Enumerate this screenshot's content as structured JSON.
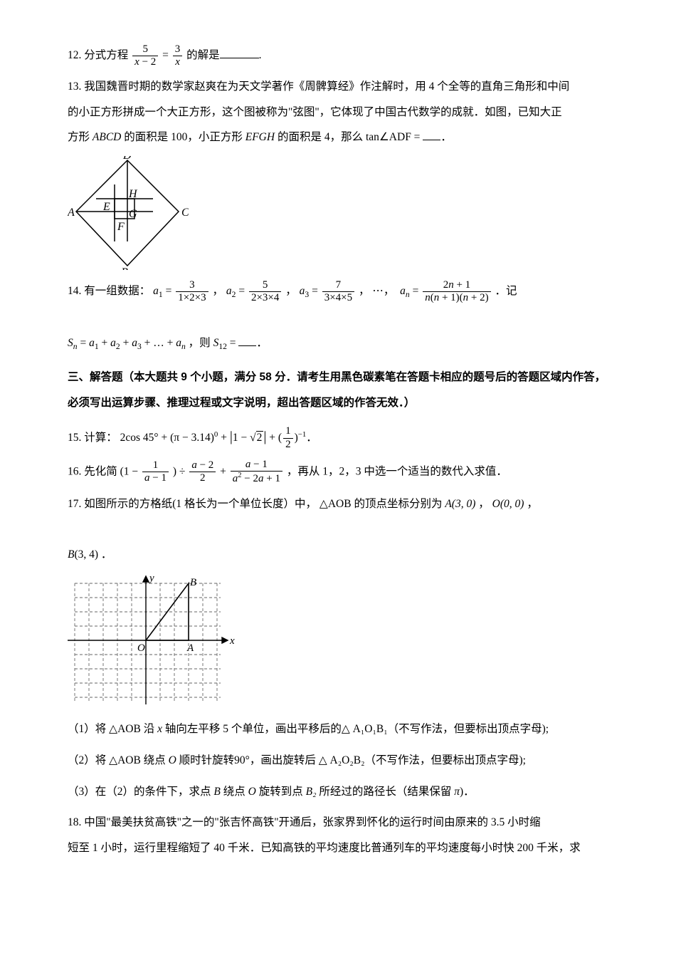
{
  "q12": {
    "num": "12.",
    "pre": "分式方程",
    "frac1_n": "5",
    "frac1_d_a": "x",
    "frac1_d_op": " − 2",
    "eq": " = ",
    "frac2_n": "3",
    "frac2_d": "x",
    "post": "的解是",
    "end": "."
  },
  "q13": {
    "num": "13.",
    "line1a": "我国魏晋时期的数学家赵爽在为天文学著作《周髀算经》作注解时，用 4 个全等的直角三角形和中间",
    "line2": "的小正方形拼成一个大正方形，这个图被称为\"弦图\"，它体现了中国古代数学的成就．如图，已知大正",
    "line3a": "方形",
    "sq1": " ABCD ",
    "line3b": "的面积是 100，小正方形",
    "sq2": " EFGH ",
    "line3c": "的面积是 4，那么",
    "tan": " tan∠ADF = ",
    "end": "．",
    "diagram": {
      "labels": {
        "A": "A",
        "B": "B",
        "C": "C",
        "D": "D",
        "E": "E",
        "F": "F",
        "G": "G",
        "H": "H"
      },
      "stroke": "#000000",
      "stroke_width": 1.5
    }
  },
  "q14": {
    "num": "14.",
    "pre": "有一组数据：",
    "a1": "a",
    "sub1": "1",
    "eq": " = ",
    "f1n": "3",
    "f1d": "1×2×3",
    "a2": "a",
    "sub2": "2",
    "f2n": "5",
    "f2d": "2×3×4",
    "a3": "a",
    "sub3": "3",
    "f3n": "7",
    "f3d": "3×4×5",
    "dots": "⋯",
    "an": "a",
    "subn": "n",
    "fnn_a": "2",
    "fnn_b": "n",
    "fnn_c": " + 1",
    "fnd_a": "n",
    "fnd_b": "(",
    "fnd_c": "n",
    "fnd_d": " + 1)(",
    "fnd_e": "n",
    "fnd_f": " + 2)",
    "post1": "．记",
    "Sline_a": "S",
    "Sline_sub": "n",
    "Sline_b": " = ",
    "sum_a1": "a",
    "sum_s1": "1",
    "sum_a2": "a",
    "sum_s2": "2",
    "sum_a3": "a",
    "sum_s3": "3",
    "sum_dots": " + … + ",
    "sum_an": "a",
    "sum_sn": "n",
    "then": "，则",
    "S12a": "S",
    "S12s": "12",
    "S12b": " = ",
    "end": "．"
  },
  "section3": {
    "title": "三、解答题（本大题共 9 个小题，满分 58 分．请考生用黑色碳素笔在答题卡相应的题号后的答题区域内作答，必须写出运算步骤、推理过程或文字说明，超出答题区域的作答无效．）"
  },
  "q15": {
    "num": "15.",
    "pre": "计算：",
    "t1": "2cos 45° + (π − 3.14)",
    "sup0": "0",
    "t2": " + ",
    "abs_open": "|",
    "abs_inner_a": "1 − ",
    "abs_rad": "2",
    "abs_close": "|",
    "t3": " + (",
    "half_n": "1",
    "half_d": "2",
    "t4": ")",
    "supneg1": "−1",
    "end": "．"
  },
  "q16": {
    "num": "16.",
    "pre": "先化简",
    "expr_a": "(1 − ",
    "f1n": "1",
    "f1d_a": "a",
    "f1d_b": " − 1",
    "expr_b": ") ÷ ",
    "f2n_a": "a",
    "f2n_b": " − 2",
    "f2d": "2",
    "expr_c": " + ",
    "f3n_a": "a",
    "f3n_b": " − 1",
    "f3d_a": "a",
    "f3d_sup": "2",
    "f3d_b": " − 2",
    "f3d_c": "a",
    "f3d_d": " + 1",
    "post": "，再从 1，2，3 中选一个适当的数代入求值．"
  },
  "q17": {
    "num": "17.",
    "line1a": "如图所示的方格纸(1 格长为一个单位长度）中，",
    "tri": "△AOB",
    "line1b": " 的顶点坐标分别为",
    "pA": " A(3, 0) ",
    "c1": "，",
    "pO": " O(0, 0) ",
    "c2": "，",
    "pB_label": "B",
    "pB_coords": "(3, 4) ",
    "end1": "．",
    "grid": {
      "xmin": -5,
      "xmax": 5,
      "ymin": -4,
      "ymax": 4,
      "O": "O",
      "A": "A",
      "B": "B",
      "x": "x",
      "y": "y",
      "stroke": "#808080",
      "axis_stroke": "#000000"
    },
    "p1_num": "（1）",
    "p1a": "将 ",
    "p1_tri": "△AOB",
    "p1b": " 沿",
    "p1_x": " x ",
    "p1c": "轴向左平移 5 个单位，画出平移后的",
    "p1_tri2": "△ A₁O₁B₁",
    "p1d": "（不写作法，但要标出顶点字母);",
    "p2_num": "（2）",
    "p2a": "将 ",
    "p2_tri": "△AOB",
    "p2b": " 绕点",
    "p2_O": " O ",
    "p2c": "顺时针旋转",
    "p2_ang": "90°",
    "p2d": "，画出旋转后   ",
    "p2_tri2": "△ A₂O₂B₂",
    "p2e": "（不写作法，但要标出顶点字母);",
    "p3_num": "（3）",
    "p3a": "在（2）的条件下，求点",
    "p3_B": " B ",
    "p3b": "绕点",
    "p3_O": " O ",
    "p3c": "旋转到点",
    "p3_B2": " B₂ ",
    "p3d": "所经过的路径长（结果保留",
    "p3_pi": " π",
    "p3e": ")．"
  },
  "q18": {
    "num": "18.",
    "line1": "中国\"最美扶贫高铁\"之一的\"张吉怀高铁\"开通后，张家界到怀化的运行时间由原来的 3.5 小时缩",
    "line2": "短至 1 小时，运行里程缩短了 40 千米．已知高铁的平均速度比普通列车的平均速度每小时快 200 千米，求"
  }
}
